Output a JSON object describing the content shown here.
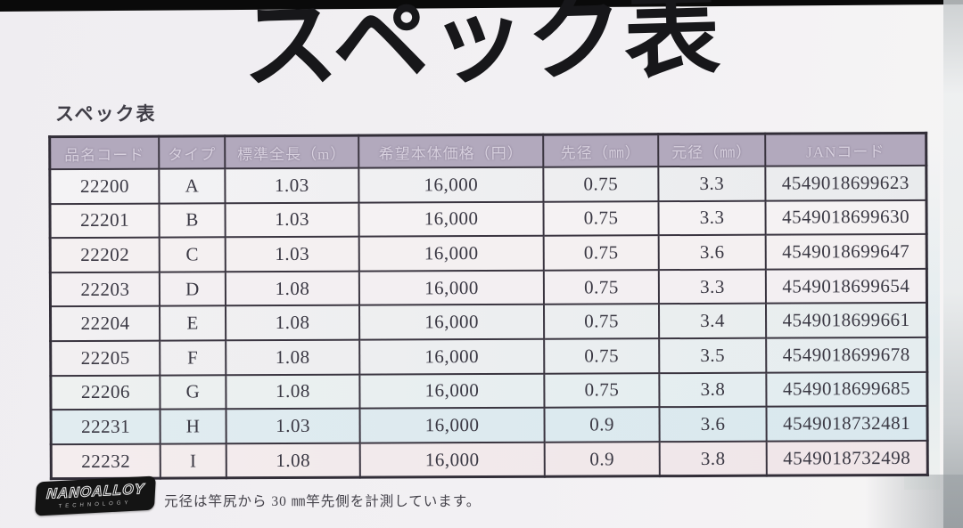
{
  "page": {
    "main_title": "スペック表",
    "section_label": "スペック表"
  },
  "table": {
    "columns": [
      "品名コード",
      "タイプ",
      "標準全長（m）",
      "希望本体価格（円）",
      "先径（㎜）",
      "元径（㎜）",
      "JANコード"
    ],
    "rows": [
      [
        "22200",
        "A",
        "1.03",
        "16,000",
        "0.75",
        "3.3",
        "4549018699623"
      ],
      [
        "22201",
        "B",
        "1.03",
        "16,000",
        "0.75",
        "3.3",
        "4549018699630"
      ],
      [
        "22202",
        "C",
        "1.03",
        "16,000",
        "0.75",
        "3.6",
        "4549018699647"
      ],
      [
        "22203",
        "D",
        "1.08",
        "16,000",
        "0.75",
        "3.3",
        "4549018699654"
      ],
      [
        "22204",
        "E",
        "1.08",
        "16,000",
        "0.75",
        "3.4",
        "4549018699661"
      ],
      [
        "22205",
        "F",
        "1.08",
        "16,000",
        "0.75",
        "3.5",
        "4549018699678"
      ],
      [
        "22206",
        "G",
        "1.08",
        "16,000",
        "0.75",
        "3.8",
        "4549018699685"
      ],
      [
        "22231",
        "H",
        "1.03",
        "16,000",
        "0.9",
        "3.6",
        "4549018732481"
      ],
      [
        "22232",
        "I",
        "1.08",
        "16,000",
        "0.9",
        "3.8",
        "4549018732498"
      ]
    ]
  },
  "footer": {
    "logo_line1": "NANOALLOY",
    "logo_line2": "TECHNOLOGY",
    "note": "元径は竿尻から 30 ㎜竿先側を計測しています。"
  },
  "colors": {
    "header_bg": "#b2a9bd",
    "header_text": "#d8d1df",
    "grid_line": "#3a3540",
    "cell_text": "#3a3843",
    "page_bg": "#f1eff2",
    "logo_bg": "#141414",
    "blue_cast": "#d9e8ee",
    "pink_cast": "#efe5e8"
  }
}
